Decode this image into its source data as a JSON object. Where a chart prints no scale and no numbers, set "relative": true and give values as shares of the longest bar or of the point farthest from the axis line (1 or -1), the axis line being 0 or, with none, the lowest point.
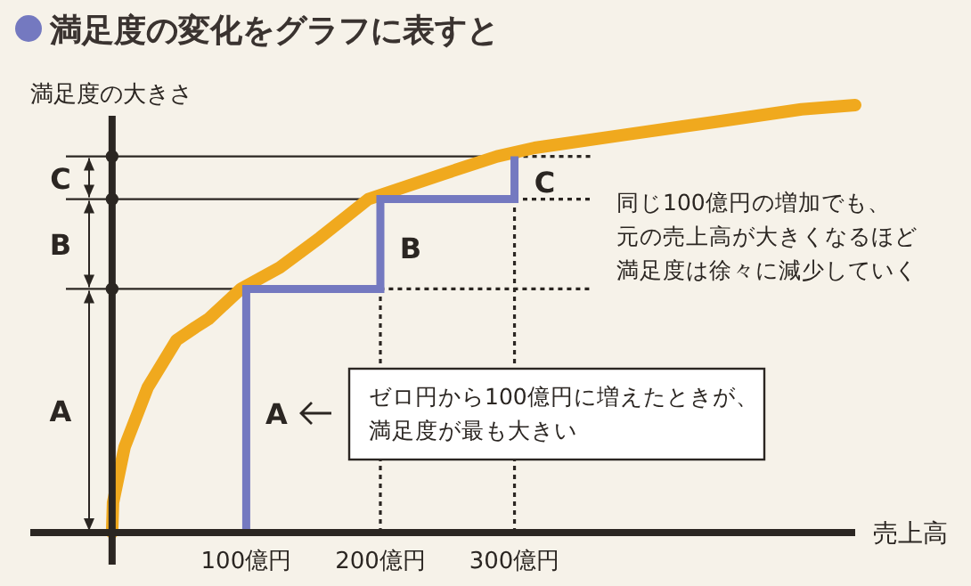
{
  "chart_data": {
    "type": "line",
    "title": "満足度の変化をグラフに表すと",
    "xlabel": "売上高",
    "ylabel": "満足度の大きさ",
    "relative": true,
    "tick_labels": "x",
    "xlim": [
      -61,
      554
    ],
    "xticks": [
      {
        "value": 100,
        "label": "100億円"
      },
      {
        "value": 200,
        "label": "200億円"
      },
      {
        "value": 300,
        "label": "300億円"
      }
    ],
    "series": [
      {
        "color": "#f0a91e",
        "x": [
          0,
          0.7,
          9.3,
          26.6,
          48,
          62,
          72,
          96,
          125,
          155,
          191,
          248,
          287,
          315,
          381,
          448,
          514,
          554
        ],
        "values": [
          0,
          0.07,
          0.2,
          0.34,
          0.45,
          0.48,
          0.5,
          0.57,
          0.62,
          0.69,
          0.78,
          0.84,
          0.88,
          0.9,
          0.93,
          0.96,
          0.99,
          1
        ]
      },
      {
        "type": "step",
        "color": "#7479c0",
        "x": [
          100,
          100,
          200,
          300
        ],
        "values": [
          0,
          0.57,
          0.78,
          0.88
        ]
      }
    ],
    "ref_lines": [
      {
        "axis": "y",
        "value": 0.57
      },
      {
        "axis": "y",
        "value": 0.78
      },
      {
        "axis": "y",
        "value": 0.88
      },
      {
        "axis": "x",
        "value": 200,
        "line_style": "dotted"
      },
      {
        "axis": "x",
        "value": 300,
        "line_style": "dotted"
      }
    ],
    "annotations": [
      "A",
      "B",
      "C",
      "A",
      "B",
      "C",
      "ゼロ円から100億円に増えたときが、",
      "満足度が最も大きい",
      "同じ100億円の増加でも、",
      "元の売上高が大きくなるほど",
      "満足度は徐々に減少していく"
    ]
  }
}
